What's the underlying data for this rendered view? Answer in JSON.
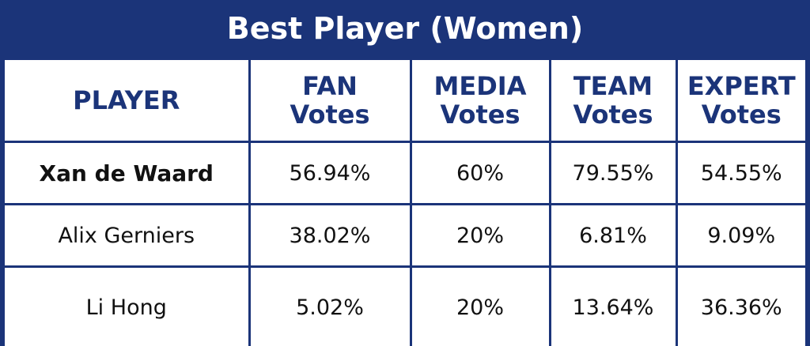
{
  "title": "Best Player (Women)",
  "headers": {
    "player": "PLAYER",
    "fan": [
      "FAN",
      "Votes"
    ],
    "media": [
      "MEDIA",
      "Votes"
    ],
    "team": [
      "TEAM",
      "Votes"
    ],
    "expert": [
      "EXPERT",
      "Votes"
    ]
  },
  "rows": [
    {
      "player": "Xan de Waard",
      "fan": "56.94%",
      "media": "60%",
      "team": "79.55%",
      "expert": "54.55%"
    },
    {
      "player": "Alix Gerniers",
      "fan": "38.02%",
      "media": "20%",
      "team": "6.81%",
      "expert": "9.09%"
    },
    {
      "player": "Li Hong",
      "fan": "5.02%",
      "media": "20%",
      "team": "13.64%",
      "expert": "36.36%"
    }
  ],
  "colors": {
    "navy": "#1b3479",
    "text": "#111111",
    "background": "#ffffff"
  }
}
